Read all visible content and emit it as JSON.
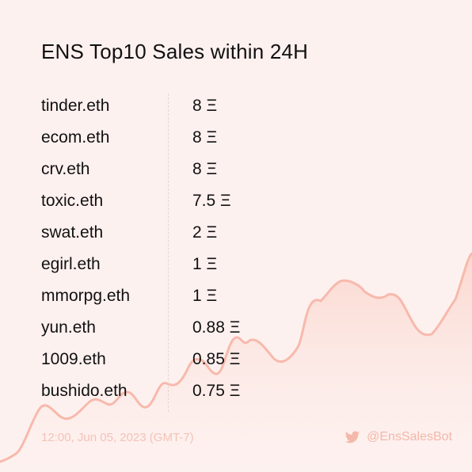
{
  "title": "ENS Top10 Sales within 24H",
  "sales": [
    {
      "name": "tinder.eth",
      "price": "8 Ξ"
    },
    {
      "name": "ecom.eth",
      "price": "8 Ξ"
    },
    {
      "name": "crv.eth",
      "price": "8 Ξ"
    },
    {
      "name": "toxic.eth",
      "price": "7.5 Ξ"
    },
    {
      "name": "swat.eth",
      "price": "2 Ξ"
    },
    {
      "name": "egirl.eth",
      "price": "1 Ξ"
    },
    {
      "name": "mmorpg.eth",
      "price": "1 Ξ"
    },
    {
      "name": "yun.eth",
      "price": "0.88 Ξ"
    },
    {
      "name": "1009.eth",
      "price": "0.85 Ξ"
    },
    {
      "name": "bushido.eth",
      "price": "0.75 Ξ"
    }
  ],
  "footer": {
    "timestamp": "12:00, Jun 05, 2023 (GMT-7)",
    "handle": "@EnsSalesBot",
    "handle_icon": "twitter-bird-icon"
  },
  "colors": {
    "background": "#fdf1ef",
    "line": "#f7b9ac",
    "area_fill": "#fbd7cf",
    "footer_text": "#f4c2b8"
  }
}
